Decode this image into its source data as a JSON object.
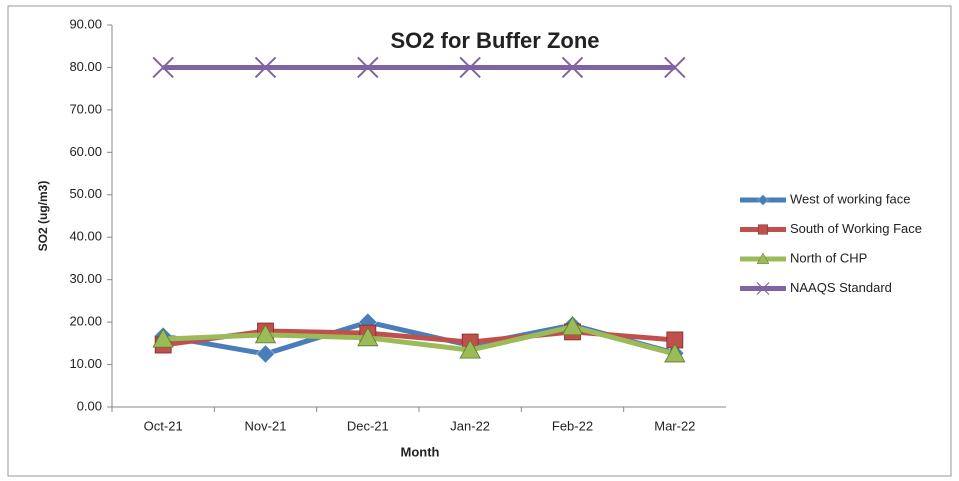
{
  "chart_data": {
    "type": "line",
    "title": "SO2 for Buffer Zone",
    "x_label": "Month",
    "y_label": "SO2  (ug/m3)",
    "categories": [
      "Oct-21",
      "Nov-21",
      "Dec-21",
      "Jan-22",
      "Feb-22",
      "Mar-22"
    ],
    "series": [
      {
        "name": "West of working face",
        "color": "#4a7ebb",
        "marker": "diamond",
        "values": [
          16.7,
          12.5,
          20.0,
          14.5,
          19.3,
          12.7
        ]
      },
      {
        "name": "South of Working Face",
        "color": "#c0504d",
        "marker": "square",
        "values": [
          14.6,
          17.9,
          17.4,
          15.3,
          17.7,
          15.8
        ]
      },
      {
        "name": "North of CHP",
        "color": "#9bbb59",
        "marker": "triangle",
        "values": [
          16.0,
          17.0,
          16.3,
          13.4,
          18.9,
          12.5
        ]
      },
      {
        "name": "NAAQS Standard",
        "color": "#8064a2",
        "marker": "x",
        "values": [
          80,
          80,
          80,
          80,
          80,
          80
        ]
      }
    ],
    "ylim": [
      0,
      90
    ],
    "yticks": [
      {
        "value": 0,
        "label": "0.00"
      },
      {
        "value": 10,
        "label": "10.00"
      },
      {
        "value": 20,
        "label": "20.00"
      },
      {
        "value": 30,
        "label": "30.00"
      },
      {
        "value": 40,
        "label": "40.00"
      },
      {
        "value": 50,
        "label": "50.00"
      },
      {
        "value": 60,
        "label": "60.00"
      },
      {
        "value": 70,
        "label": "70.00"
      },
      {
        "value": 80,
        "label": "80.00"
      },
      {
        "value": 90,
        "label": "90.00"
      }
    ],
    "grid": false,
    "legend": "right"
  }
}
